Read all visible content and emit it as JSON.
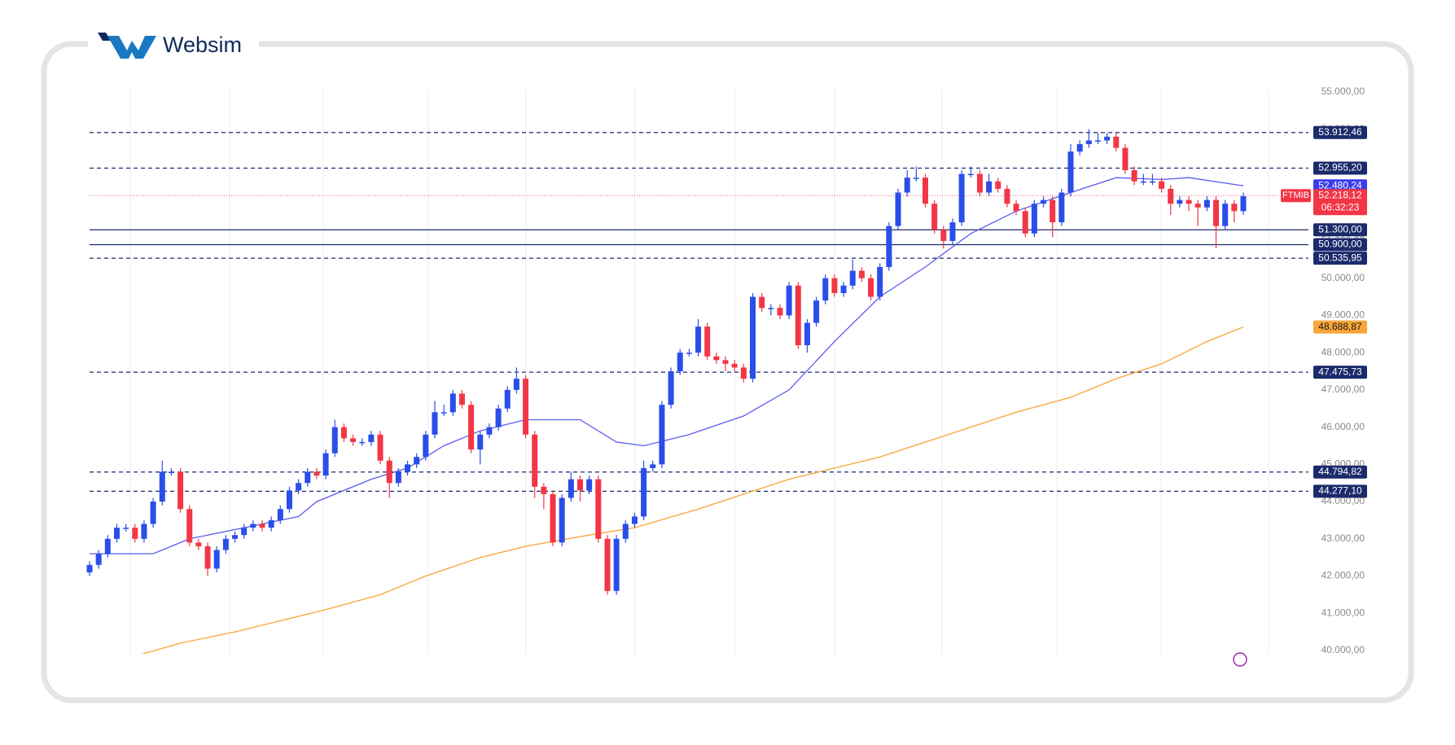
{
  "logo": "Websim",
  "chart_data": {
    "type": "candlestick",
    "up_color": "#2a4ee8",
    "down_color": "#f23645",
    "ylim": [
      40000,
      55000
    ],
    "yticks": [
      {
        "value": 40000,
        "label": "40.000,00"
      },
      {
        "value": 41000,
        "label": "41.000,00"
      },
      {
        "value": 42000,
        "label": "42.000,00"
      },
      {
        "value": 43000,
        "label": "43.000,00"
      },
      {
        "value": 44000,
        "label": "44.000,00"
      },
      {
        "value": 45000,
        "label": "45.000,00"
      },
      {
        "value": 46000,
        "label": "46.000,00"
      },
      {
        "value": 47000,
        "label": "47.000,00"
      },
      {
        "value": 48000,
        "label": "48.000,00"
      },
      {
        "value": 49000,
        "label": "49.000,00"
      },
      {
        "value": 50000,
        "label": "50.000,00"
      },
      {
        "value": 51000,
        "label": "51.000,00"
      },
      {
        "value": 52000,
        "label": "52.000,00"
      },
      {
        "value": 53000,
        "label": "53.000,00"
      },
      {
        "value": 54000,
        "label": "54.000,00"
      },
      {
        "value": 55000,
        "label": "55.000,00"
      }
    ],
    "open": [
      42100,
      42300,
      42600,
      43000,
      43300,
      43300,
      43000,
      43400,
      44000,
      44800,
      44800,
      43800,
      42900,
      42800,
      42200,
      42700,
      43000,
      43100,
      43300,
      43400,
      43300,
      43500,
      43800,
      44300,
      44500,
      44800,
      44700,
      45300,
      46000,
      45700,
      45600,
      45600,
      45800,
      45100,
      44500,
      44800,
      45000,
      45200,
      45800,
      46400,
      46400,
      46900,
      46600,
      45400,
      45800,
      46000,
      46500,
      47000,
      47300,
      45800,
      44400,
      44200,
      42900,
      44100,
      44600,
      44300,
      44600,
      43000,
      41600,
      43000,
      43400,
      43600,
      44900,
      45000,
      46600,
      47500,
      48000,
      48000,
      48700,
      47900,
      47800,
      47700,
      47600,
      47300,
      49500,
      49200,
      49200,
      49000,
      49800,
      48200,
      48800,
      49400,
      50000,
      49600,
      49800,
      50200,
      50000,
      49500,
      50300,
      51400,
      52300,
      52700,
      52700,
      52000,
      51300,
      51000,
      51500,
      52800,
      52800,
      52300,
      52600,
      52400,
      52000,
      51800,
      51200,
      52000,
      52100,
      51500,
      52300,
      53400,
      53600,
      53700,
      53700,
      53800,
      53500,
      52900,
      52600,
      52600,
      52600,
      52400,
      52000,
      52100,
      52000,
      51900,
      52100,
      51400,
      52000,
      51800
    ],
    "high": [
      42400,
      42700,
      43100,
      43400,
      43400,
      43400,
      43500,
      44100,
      45100,
      44900,
      44900,
      43900,
      43000,
      42900,
      42800,
      43100,
      43200,
      43400,
      43500,
      43500,
      43600,
      43900,
      44400,
      44600,
      44900,
      44900,
      45400,
      46200,
      46100,
      45800,
      45700,
      45900,
      45900,
      45200,
      44900,
      45100,
      45300,
      45900,
      46700,
      46600,
      47000,
      47000,
      46700,
      45900,
      46100,
      46600,
      47100,
      47600,
      47400,
      45900,
      44500,
      44300,
      44200,
      44800,
      44700,
      44700,
      44700,
      43100,
      43100,
      43500,
      43700,
      45100,
      45100,
      46700,
      47600,
      48100,
      48100,
      48900,
      48800,
      48000,
      47900,
      47800,
      47700,
      49600,
      49600,
      49300,
      49300,
      49900,
      49900,
      48900,
      49500,
      50100,
      50100,
      49900,
      50500,
      50300,
      50100,
      50400,
      51500,
      52400,
      52900,
      53000,
      52800,
      52100,
      51400,
      51600,
      52900,
      53000,
      52900,
      52800,
      52700,
      52500,
      52100,
      51900,
      52100,
      52200,
      52200,
      52400,
      53600,
      53700,
      54000,
      53900,
      53900,
      53900,
      53600,
      53000,
      52800,
      52800,
      52700,
      52500,
      52200,
      52200,
      52100,
      52200,
      52200,
      52100,
      52100,
      52300
    ],
    "low": [
      42000,
      42200,
      42500,
      42900,
      43200,
      42900,
      42900,
      43300,
      43900,
      44700,
      43700,
      42800,
      42700,
      42000,
      42100,
      42600,
      42900,
      43000,
      43200,
      43200,
      43200,
      43400,
      43700,
      44200,
      44400,
      44600,
      44600,
      45200,
      45600,
      45500,
      45500,
      45500,
      45000,
      44100,
      44400,
      44700,
      44900,
      45100,
      45700,
      46300,
      46300,
      46500,
      45300,
      45000,
      45700,
      45900,
      46400,
      46900,
      45700,
      44100,
      43800,
      42800,
      42800,
      44000,
      44000,
      44200,
      42900,
      41500,
      41500,
      42900,
      43300,
      43500,
      44800,
      44900,
      46500,
      47400,
      47900,
      47900,
      47800,
      47700,
      47500,
      47500,
      47200,
      47200,
      49100,
      49000,
      48900,
      48900,
      48100,
      48000,
      48700,
      49300,
      49500,
      49500,
      49700,
      49900,
      49400,
      49400,
      50200,
      51300,
      52200,
      52600,
      51900,
      51200,
      50800,
      50900,
      51400,
      52700,
      52200,
      52200,
      52300,
      51900,
      51700,
      51100,
      51100,
      51900,
      51100,
      51400,
      52200,
      53300,
      53500,
      53600,
      53600,
      53400,
      52800,
      52500,
      52500,
      52500,
      52300,
      51700,
      51900,
      51800,
      51400,
      51800,
      50800,
      51300,
      51500,
      51700
    ],
    "close": [
      42300,
      42600,
      43000,
      43300,
      43300,
      43000,
      43400,
      44000,
      44800,
      44800,
      43800,
      42900,
      42800,
      42200,
      42700,
      43000,
      43100,
      43300,
      43400,
      43300,
      43500,
      43800,
      44300,
      44500,
      44800,
      44700,
      45300,
      46000,
      45700,
      45600,
      45600,
      45800,
      45100,
      44500,
      44800,
      45000,
      45200,
      45800,
      46400,
      46400,
      46900,
      46600,
      45400,
      45800,
      46000,
      46500,
      47000,
      47300,
      45800,
      44400,
      44200,
      42900,
      44100,
      44600,
      44300,
      44600,
      43000,
      41600,
      43000,
      43400,
      43600,
      44900,
      45000,
      46600,
      47500,
      48000,
      48000,
      48700,
      47900,
      47800,
      47700,
      47600,
      47300,
      49500,
      49200,
      49200,
      49000,
      49800,
      48200,
      48800,
      49400,
      50000,
      49600,
      49800,
      50200,
      50000,
      49500,
      50300,
      51400,
      52300,
      52700,
      52700,
      52000,
      51300,
      51000,
      51500,
      52800,
      52800,
      52300,
      52600,
      52400,
      52000,
      51800,
      51200,
      52000,
      52100,
      51500,
      52300,
      53400,
      53600,
      53700,
      53700,
      53800,
      53500,
      52900,
      52600,
      52600,
      52600,
      52400,
      52000,
      52100,
      52000,
      51900,
      52100,
      51400,
      52000,
      51800,
      52200
    ],
    "moving_averages": [
      {
        "color": "#5b5bf0",
        "label_bg": "#3b3bef",
        "label_color": "#ffffff",
        "x": [
          0,
          7,
          11,
          17,
          23,
          25,
          31,
          35,
          39,
          43,
          48,
          54,
          58,
          61,
          66,
          72,
          77,
          82,
          87,
          92,
          97,
          102,
          108,
          113,
          118,
          121,
          127
        ],
        "values": [
          42600,
          42600,
          43000,
          43300,
          43600,
          44000,
          44600,
          44900,
          45500,
          45900,
          46200,
          46200,
          45600,
          45500,
          45800,
          46300,
          47000,
          48300,
          49500,
          50300,
          51200,
          51800,
          52300,
          52700,
          52650,
          52700,
          52480.24
        ],
        "last_label": "52.480,24"
      },
      {
        "color": "#f7a538",
        "label_bg": "#f7a538",
        "label_color": "#1a1a1a",
        "x": [
          5,
          10,
          16,
          21,
          26,
          32,
          37,
          43,
          48,
          55,
          60,
          67,
          72,
          77,
          82,
          87,
          92,
          97,
          102,
          108,
          113,
          118,
          123,
          127
        ],
        "values": [
          39850,
          40200,
          40500,
          40800,
          41100,
          41500,
          42000,
          42500,
          42800,
          43100,
          43300,
          43800,
          44200,
          44600,
          44900,
          45200,
          45600,
          46000,
          46400,
          46800,
          47300,
          47700,
          48300,
          48688.87
        ],
        "last_label": "48.688,87"
      }
    ],
    "levels": [
      {
        "value": 53912.46,
        "label": "53.912,46",
        "style": "dashed"
      },
      {
        "value": 52955.2,
        "label": "52.955,20",
        "style": "dashed"
      },
      {
        "value": 51300,
        "label": "51.300,00",
        "style": "solid"
      },
      {
        "value": 50900,
        "label": "50.900,00",
        "style": "solid"
      },
      {
        "value": 50535.95,
        "label": "50.535,95",
        "style": "dashed"
      },
      {
        "value": 47475.73,
        "label": "47.475,73",
        "style": "dashed"
      },
      {
        "value": 44794.82,
        "label": "44.794,82",
        "style": "dashed"
      },
      {
        "value": 44277.1,
        "label": "44.277,10",
        "style": "dashed"
      }
    ],
    "level_color": "#1b2a6b",
    "last_price": {
      "value": 52218.12,
      "label": "52.218,12",
      "symbol": "FTMIB",
      "countdown": "06:32:23",
      "color": "#f23645"
    }
  }
}
